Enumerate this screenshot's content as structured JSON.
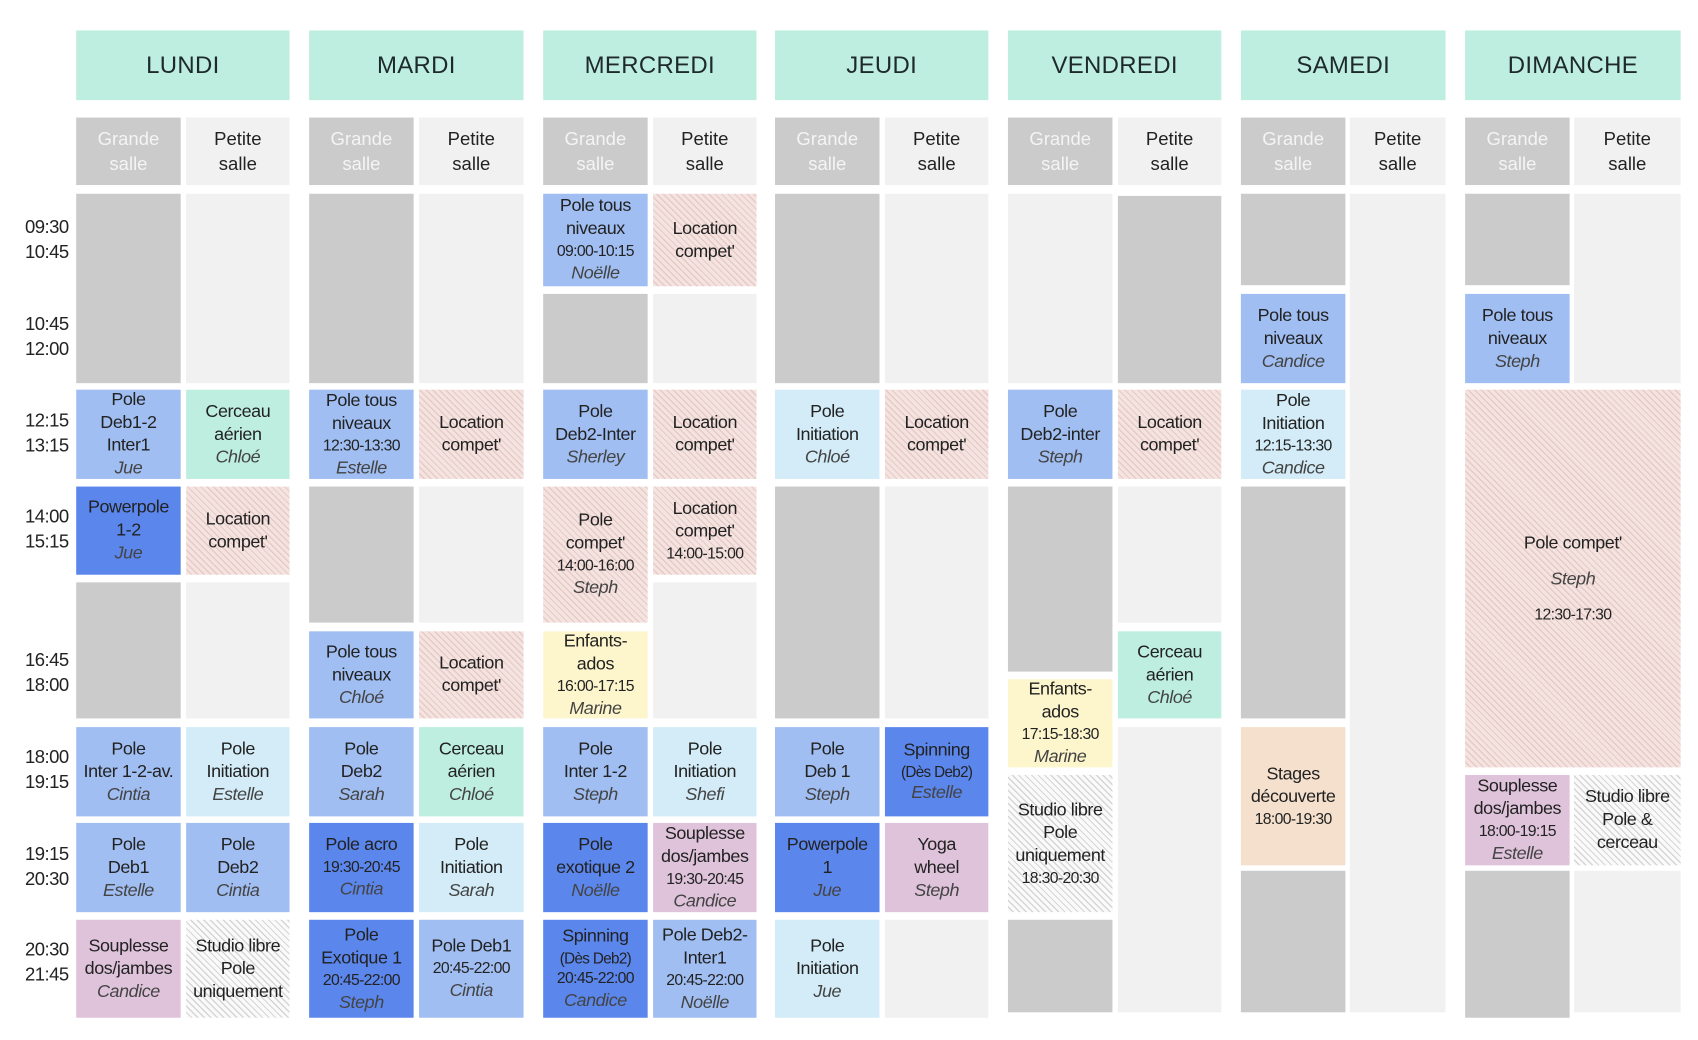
{
  "colors": {
    "header": "#bdeee0",
    "grey": "#cccbcc",
    "light": "#f1f1f1",
    "blue": "#a0bef2",
    "dark": "#5b86ec",
    "pale": "#d3ecf7",
    "mint": "#bdeee0",
    "pink": "#dfc3db",
    "yellow": "#fdf6cc",
    "peach": "#f4e0cc"
  },
  "rooms": {
    "grande": [
      "Grande",
      "salle"
    ],
    "petite": [
      "Petite",
      "salle"
    ]
  },
  "days": [
    "LUNDI",
    "MARDI",
    "MERCREDI",
    "JEUDI",
    "VENDREDI",
    "SAMEDI",
    "DIMANCHE"
  ],
  "times": [
    [
      "09:30",
      "10:45"
    ],
    [
      "10:45",
      "12:00"
    ],
    [
      "12:15",
      "13:15"
    ],
    [
      "14:00",
      "15:15"
    ],
    [
      "16:45",
      "18:00"
    ],
    [
      "18:00",
      "19:15"
    ],
    [
      "19:15",
      "20:30"
    ],
    [
      "20:30",
      "21:45"
    ]
  ],
  "blocks": [
    {
      "kind": "grey",
      "lines": []
    },
    {
      "kind": "blue",
      "lines": [
        [
          "Pole",
          ""
        ],
        [
          "Deb1-2",
          ""
        ],
        [
          "Inter1",
          ""
        ],
        [
          "Jue",
          "teacher"
        ]
      ]
    },
    {
      "kind": "dark",
      "lines": [
        [
          "Powerpole",
          ""
        ],
        [
          "1-2",
          ""
        ],
        [
          "Jue",
          "teacher"
        ]
      ]
    },
    {
      "kind": "grey",
      "lines": []
    },
    {
      "kind": "blue",
      "lines": [
        [
          "Pole",
          ""
        ],
        [
          "Inter 1-2-av.",
          ""
        ],
        [
          "Cintia",
          "teacher"
        ]
      ]
    },
    {
      "kind": "blue",
      "lines": [
        [
          "Pole",
          ""
        ],
        [
          "Deb1",
          ""
        ],
        [
          "Estelle",
          "teacher"
        ]
      ]
    },
    {
      "kind": "pink",
      "lines": [
        [
          "Souplesse",
          ""
        ],
        [
          "dos/jambes",
          ""
        ],
        [
          "Candice",
          "teacher"
        ]
      ]
    },
    {
      "kind": "light",
      "lines": []
    },
    {
      "kind": "mint",
      "lines": [
        [
          "Cerceau",
          ""
        ],
        [
          "aérien",
          ""
        ],
        [
          "Chloé",
          "teacher"
        ]
      ]
    },
    {
      "kind": "hatch",
      "lines": [
        [
          "Location",
          ""
        ],
        [
          "compet'",
          ""
        ]
      ]
    },
    {
      "kind": "light",
      "lines": []
    },
    {
      "kind": "pale",
      "lines": [
        [
          "Pole",
          ""
        ],
        [
          "Initiation",
          ""
        ],
        [
          "Estelle",
          "teacher"
        ]
      ]
    },
    {
      "kind": "blue",
      "lines": [
        [
          "Pole",
          ""
        ],
        [
          "Deb2",
          ""
        ],
        [
          "Cintia",
          "teacher"
        ]
      ]
    },
    {
      "kind": "hatchgrey",
      "lines": [
        [
          "Studio libre",
          ""
        ],
        [
          "Pole",
          ""
        ],
        [
          "uniquement",
          ""
        ]
      ]
    },
    {
      "kind": "grey",
      "lines": []
    },
    {
      "kind": "blue",
      "lines": [
        [
          "Pole tous",
          ""
        ],
        [
          "niveaux",
          ""
        ],
        [
          "12:30-13:30",
          "time-s"
        ],
        [
          "Estelle",
          "teacher"
        ]
      ]
    },
    {
      "kind": "grey",
      "lines": []
    },
    {
      "kind": "blue",
      "lines": [
        [
          "Pole tous",
          ""
        ],
        [
          "niveaux",
          ""
        ],
        [
          "Chloé",
          "teacher"
        ]
      ]
    },
    {
      "kind": "blue",
      "lines": [
        [
          "Pole",
          ""
        ],
        [
          "Deb2",
          ""
        ],
        [
          "Sarah",
          "teacher"
        ]
      ]
    },
    {
      "kind": "dark",
      "lines": [
        [
          "Pole acro",
          ""
        ],
        [
          "19:30-20:45",
          "time-s"
        ],
        [
          "Cintia",
          "teacher"
        ]
      ]
    },
    {
      "kind": "dark",
      "lines": [
        [
          "Pole",
          ""
        ],
        [
          "Exotique 1",
          ""
        ],
        [
          "20:45-22:00",
          "time-s"
        ],
        [
          "Steph",
          "teacher"
        ]
      ]
    },
    {
      "kind": "light",
      "lines": []
    },
    {
      "kind": "hatch",
      "lines": [
        [
          "Location",
          ""
        ],
        [
          "compet'",
          ""
        ]
      ]
    },
    {
      "kind": "light",
      "lines": []
    },
    {
      "kind": "hatch",
      "lines": [
        [
          "Location",
          ""
        ],
        [
          "compet'",
          ""
        ]
      ]
    },
    {
      "kind": "mint",
      "lines": [
        [
          "Cerceau",
          ""
        ],
        [
          "aérien",
          ""
        ],
        [
          "Chloé",
          "teacher"
        ]
      ]
    },
    {
      "kind": "pale",
      "lines": [
        [
          "Pole",
          ""
        ],
        [
          "Initiation",
          ""
        ],
        [
          "Sarah",
          "teacher"
        ]
      ]
    },
    {
      "kind": "blue",
      "lines": [
        [
          "Pole Deb1",
          ""
        ],
        [
          "20:45-22:00",
          "time-s"
        ],
        [
          "Cintia",
          "teacher"
        ]
      ]
    },
    {
      "kind": "blue",
      "lines": [
        [
          "Pole tous",
          ""
        ],
        [
          "niveaux",
          ""
        ],
        [
          "09:00-10:15",
          "time-s"
        ],
        [
          "Noëlle",
          "teacher"
        ]
      ]
    },
    {
      "kind": "grey",
      "lines": []
    },
    {
      "kind": "blue",
      "lines": [
        [
          "Pole",
          ""
        ],
        [
          "Deb2-Inter",
          ""
        ],
        [
          "Sherley",
          "teacher"
        ]
      ]
    },
    {
      "kind": "hatch",
      "lines": [
        [
          "Pole",
          ""
        ],
        [
          "compet'",
          ""
        ],
        [
          "14:00-16:00",
          "time-s"
        ],
        [
          "Steph",
          "teacher"
        ]
      ]
    },
    {
      "kind": "yellow",
      "lines": [
        [
          "Enfants-",
          ""
        ],
        [
          "ados",
          ""
        ],
        [
          "16:00-17:15",
          "time-s"
        ],
        [
          "Marine",
          "teacher"
        ]
      ]
    },
    {
      "kind": "blue",
      "lines": [
        [
          "Pole",
          ""
        ],
        [
          "Inter 1-2",
          ""
        ],
        [
          "Steph",
          "teacher"
        ]
      ]
    },
    {
      "kind": "dark",
      "lines": [
        [
          "Pole",
          ""
        ],
        [
          "exotique 2",
          ""
        ],
        [
          "Noëlle",
          "teacher"
        ]
      ]
    },
    {
      "kind": "dark",
      "lines": [
        [
          "Spinning",
          ""
        ],
        [
          "(Dès Deb2)",
          "small"
        ],
        [
          "20:45-22:00",
          "time-s"
        ],
        [
          "Candice",
          "teacher"
        ]
      ]
    },
    {
      "kind": "hatch",
      "lines": [
        [
          "Location",
          ""
        ],
        [
          "compet'",
          ""
        ]
      ]
    },
    {
      "kind": "light",
      "lines": []
    },
    {
      "kind": "hatch",
      "lines": [
        [
          "Location",
          ""
        ],
        [
          "compet'",
          ""
        ]
      ]
    },
    {
      "kind": "hatch",
      "lines": [
        [
          "Location",
          ""
        ],
        [
          "compet'",
          ""
        ],
        [
          "14:00-15:00",
          "time-s"
        ]
      ]
    },
    {
      "kind": "light",
      "lines": []
    },
    {
      "kind": "pale",
      "lines": [
        [
          "Pole",
          ""
        ],
        [
          "Initiation",
          ""
        ],
        [
          "Shefi",
          "teacher"
        ]
      ]
    },
    {
      "kind": "pink",
      "lines": [
        [
          "Souplesse",
          ""
        ],
        [
          "dos/jambes",
          ""
        ],
        [
          "19:30-20:45",
          "time-s"
        ],
        [
          "Candice",
          "teacher"
        ]
      ]
    },
    {
      "kind": "blue",
      "lines": [
        [
          "Pole Deb2-",
          ""
        ],
        [
          "Inter1",
          ""
        ],
        [
          "20:45-22:00",
          "time-s"
        ],
        [
          "Noëlle",
          "teacher"
        ]
      ]
    },
    {
      "kind": "grey",
      "lines": []
    },
    {
      "kind": "pale",
      "lines": [
        [
          "Pole",
          ""
        ],
        [
          "Initiation",
          ""
        ],
        [
          "Chloé",
          "teacher"
        ]
      ]
    },
    {
      "kind": "grey",
      "lines": []
    },
    {
      "kind": "blue",
      "lines": [
        [
          "Pole",
          ""
        ],
        [
          "Deb 1",
          ""
        ],
        [
          "Steph",
          "teacher"
        ]
      ]
    },
    {
      "kind": "dark",
      "lines": [
        [
          "Powerpole",
          ""
        ],
        [
          "1",
          ""
        ],
        [
          "Jue",
          "teacher"
        ]
      ]
    },
    {
      "kind": "pale",
      "lines": [
        [
          "Pole",
          ""
        ],
        [
          "Initiation",
          ""
        ],
        [
          "Jue",
          "teacher"
        ]
      ]
    },
    {
      "kind": "light",
      "lines": []
    },
    {
      "kind": "hatch",
      "lines": [
        [
          "Location",
          ""
        ],
        [
          "compet'",
          ""
        ]
      ]
    },
    {
      "kind": "light",
      "lines": []
    },
    {
      "kind": "dark",
      "lines": [
        [
          "Spinning",
          ""
        ],
        [
          "(Dès Deb2)",
          "small"
        ],
        [
          "Estelle",
          "teacher"
        ]
      ]
    },
    {
      "kind": "pink",
      "lines": [
        [
          "Yoga",
          ""
        ],
        [
          "wheel",
          ""
        ],
        [
          "Steph",
          "teacher"
        ]
      ]
    },
    {
      "kind": "light",
      "lines": []
    },
    {
      "kind": "light",
      "lines": []
    },
    {
      "kind": "blue",
      "lines": [
        [
          "Pole",
          ""
        ],
        [
          "Deb2-inter",
          ""
        ],
        [
          "Steph",
          "teacher"
        ]
      ]
    },
    {
      "kind": "grey",
      "lines": []
    },
    {
      "kind": "yellow",
      "lines": [
        [
          "Enfants-",
          ""
        ],
        [
          "ados",
          ""
        ],
        [
          "17:15-18:30",
          "time-s"
        ],
        [
          "Marine",
          "teacher"
        ]
      ]
    },
    {
      "kind": "hatchgrey",
      "lines": [
        [
          "Studio libre",
          ""
        ],
        [
          "Pole",
          ""
        ],
        [
          "uniquement",
          ""
        ],
        [
          "18:30-20:30",
          "time-s"
        ]
      ]
    },
    {
      "kind": "grey",
      "lines": []
    },
    {
      "kind": "grey",
      "lines": []
    },
    {
      "kind": "hatch",
      "lines": [
        [
          "Location",
          ""
        ],
        [
          "compet'",
          ""
        ]
      ]
    },
    {
      "kind": "light",
      "lines": []
    },
    {
      "kind": "mint",
      "lines": [
        [
          "Cerceau",
          ""
        ],
        [
          "aérien",
          ""
        ],
        [
          "Chloé",
          "teacher"
        ]
      ]
    },
    {
      "kind": "light",
      "lines": []
    },
    {
      "kind": "grey",
      "lines": []
    },
    {
      "kind": "blue",
      "lines": [
        [
          "Pole tous",
          ""
        ],
        [
          "niveaux",
          ""
        ],
        [
          "Candice",
          "teacher"
        ]
      ]
    },
    {
      "kind": "pale",
      "lines": [
        [
          "Pole",
          ""
        ],
        [
          "Initiation",
          ""
        ],
        [
          "12:15-13:30",
          "time-s"
        ],
        [
          "Candice",
          "teacher"
        ]
      ]
    },
    {
      "kind": "grey",
      "lines": []
    },
    {
      "kind": "peach",
      "lines": [
        [
          "Stages",
          ""
        ],
        [
          "découverte",
          ""
        ],
        [
          "18:00-19:30",
          "time-s"
        ]
      ]
    },
    {
      "kind": "grey",
      "lines": []
    },
    {
      "kind": "light",
      "lines": []
    },
    {
      "kind": "grey",
      "lines": []
    },
    {
      "kind": "blue",
      "lines": [
        [
          "Pole tous",
          ""
        ],
        [
          "niveaux",
          ""
        ],
        [
          "Steph",
          "teacher"
        ]
      ]
    },
    {
      "kind": "hatch",
      "lines": [
        [
          "Pole compet'",
          ""
        ],
        [
          "Steph",
          "teacher gap"
        ],
        [
          "12:30-17:30",
          "time-s gap"
        ]
      ]
    },
    {
      "kind": "pink",
      "lines": [
        [
          "Souplesse",
          ""
        ],
        [
          "dos/jambes",
          ""
        ],
        [
          "18:00-19:15",
          "time-s"
        ],
        [
          "Estelle",
          "teacher"
        ]
      ]
    },
    {
      "kind": "grey",
      "lines": []
    },
    {
      "kind": "light",
      "lines": []
    },
    {
      "kind": "hatchgrey",
      "lines": [
        [
          "Studio libre",
          ""
        ],
        [
          "Pole &",
          ""
        ],
        [
          "cerceau",
          ""
        ]
      ]
    },
    {
      "kind": "light",
      "lines": []
    }
  ]
}
